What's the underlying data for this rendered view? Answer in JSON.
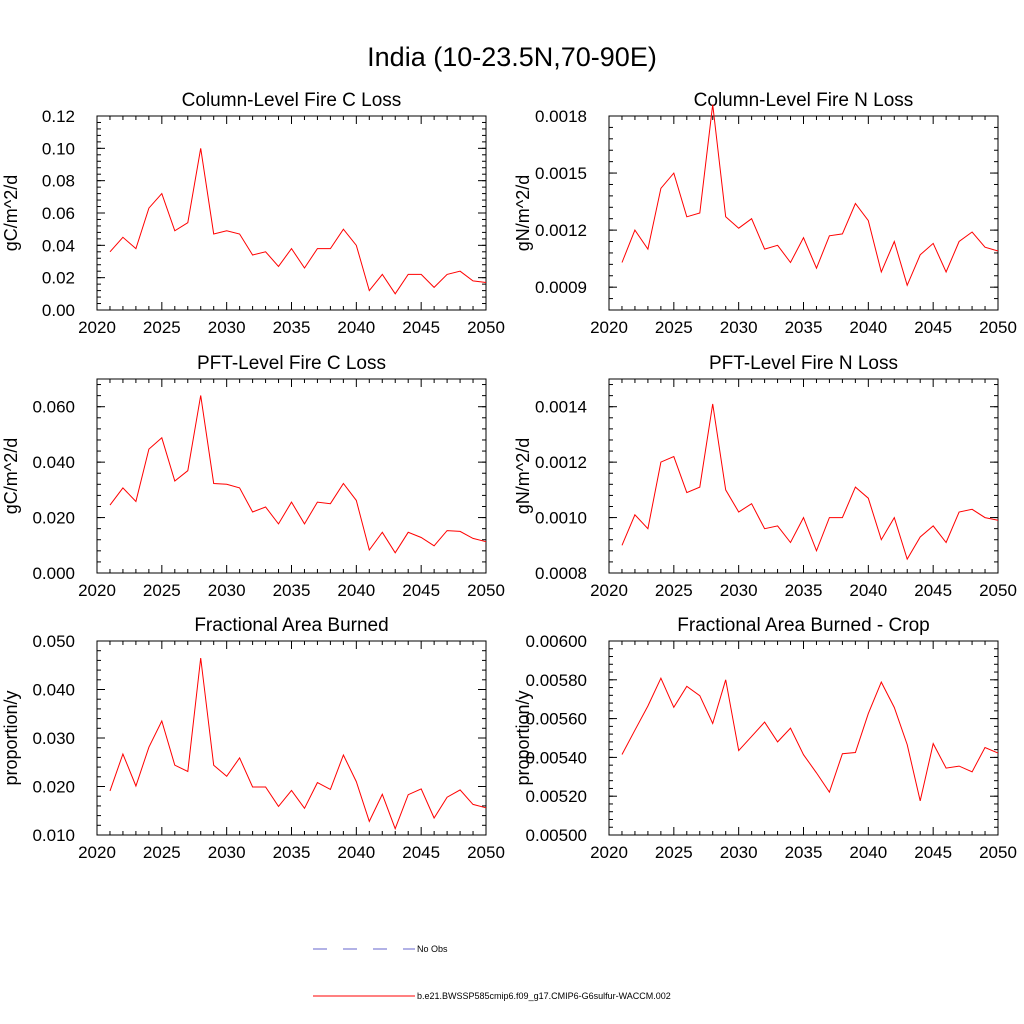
{
  "figure_title": "India (10-23.5N,70-90E)",
  "legend": {
    "items": [
      {
        "label": "No Obs",
        "color": "#6666cc",
        "dash": "dashed"
      },
      {
        "label": "b.e21.BWSSP585cmip6.f09_g17.CMIP6-G6sulfur-WACCM.002",
        "color": "#ff0000",
        "dash": "solid"
      }
    ]
  },
  "chart_data": [
    {
      "type": "line",
      "title": "Column-Level Fire C Loss",
      "ylabel": "gC/m^2/d",
      "xlim": [
        2020,
        2050
      ],
      "ylim": [
        0,
        0.12
      ],
      "xticks": [
        "2020",
        "2025",
        "2030",
        "2035",
        "2040",
        "2045",
        "2050"
      ],
      "yticks": [
        "0.00",
        "0.02",
        "0.04",
        "0.06",
        "0.08",
        "0.10",
        "0.12"
      ],
      "x": [
        2021,
        2022,
        2023,
        2024,
        2025,
        2026,
        2027,
        2028,
        2029,
        2030,
        2031,
        2032,
        2033,
        2034,
        2035,
        2036,
        2037,
        2038,
        2039,
        2040,
        2041,
        2042,
        2043,
        2044,
        2045,
        2046,
        2047,
        2048,
        2049,
        2050
      ],
      "series": [
        {
          "color": "#ff0000",
          "values": [
            0.036,
            0.045,
            0.038,
            0.063,
            0.072,
            0.049,
            0.054,
            0.1,
            0.047,
            0.049,
            0.047,
            0.034,
            0.036,
            0.027,
            0.038,
            0.026,
            0.038,
            0.038,
            0.05,
            0.04,
            0.012,
            0.022,
            0.01,
            0.022,
            0.022,
            0.014,
            0.022,
            0.024,
            0.018,
            0.017
          ]
        }
      ]
    },
    {
      "type": "line",
      "title": "Column-Level Fire N Loss",
      "ylabel": "gN/m^2/d",
      "xlim": [
        2020,
        2050
      ],
      "ylim": [
        0.00078,
        0.0018
      ],
      "xticks": [
        "2020",
        "2025",
        "2030",
        "2035",
        "2040",
        "2045",
        "2050"
      ],
      "yticks": [
        "0.0009",
        "0.0012",
        "0.0015",
        "0.0018"
      ],
      "x": [
        2021,
        2022,
        2023,
        2024,
        2025,
        2026,
        2027,
        2028,
        2029,
        2030,
        2031,
        2032,
        2033,
        2034,
        2035,
        2036,
        2037,
        2038,
        2039,
        2040,
        2041,
        2042,
        2043,
        2044,
        2045,
        2046,
        2047,
        2048,
        2049,
        2050
      ],
      "series": [
        {
          "color": "#ff0000",
          "values": [
            0.00103,
            0.0012,
            0.0011,
            0.00142,
            0.0015,
            0.00127,
            0.00129,
            0.00186,
            0.00127,
            0.00121,
            0.00126,
            0.0011,
            0.00112,
            0.00103,
            0.00116,
            0.001,
            0.00117,
            0.00118,
            0.00134,
            0.00125,
            0.00098,
            0.00114,
            0.00091,
            0.00107,
            0.00113,
            0.00098,
            0.00114,
            0.00119,
            0.00111,
            0.00109
          ]
        }
      ]
    },
    {
      "type": "line",
      "title": "PFT-Level Fire C Loss",
      "ylabel": "gC/m^2/d",
      "xlim": [
        2020,
        2050
      ],
      "ylim": [
        0,
        0.07
      ],
      "xticks": [
        "2020",
        "2025",
        "2030",
        "2035",
        "2040",
        "2045",
        "2050"
      ],
      "yticks": [
        "0.000",
        "0.020",
        "0.040",
        "0.060"
      ],
      "x": [
        2021,
        2022,
        2023,
        2024,
        2025,
        2026,
        2027,
        2028,
        2029,
        2030,
        2031,
        2032,
        2033,
        2034,
        2035,
        2036,
        2037,
        2038,
        2039,
        2040,
        2041,
        2042,
        2043,
        2044,
        2045,
        2046,
        2047,
        2048,
        2049,
        2050
      ],
      "series": [
        {
          "color": "#ff0000",
          "values": [
            0.0245,
            0.0307,
            0.0258,
            0.0447,
            0.0488,
            0.0332,
            0.0369,
            0.0641,
            0.0323,
            0.032,
            0.0307,
            0.022,
            0.0238,
            0.0177,
            0.0256,
            0.0177,
            0.0256,
            0.025,
            0.0323,
            0.0262,
            0.0083,
            0.0147,
            0.0073,
            0.0147,
            0.0128,
            0.0098,
            0.0153,
            0.015,
            0.0125,
            0.0113
          ]
        }
      ]
    },
    {
      "type": "line",
      "title": "PFT-Level Fire N Loss",
      "ylabel": "gN/m^2/d",
      "xlim": [
        2020,
        2050
      ],
      "ylim": [
        0.0008,
        0.0015
      ],
      "xticks": [
        "2020",
        "2025",
        "2030",
        "2035",
        "2040",
        "2045",
        "2050"
      ],
      "yticks": [
        "0.0008",
        "0.0010",
        "0.0012",
        "0.0014"
      ],
      "x": [
        2021,
        2022,
        2023,
        2024,
        2025,
        2026,
        2027,
        2028,
        2029,
        2030,
        2031,
        2032,
        2033,
        2034,
        2035,
        2036,
        2037,
        2038,
        2039,
        2040,
        2041,
        2042,
        2043,
        2044,
        2045,
        2046,
        2047,
        2048,
        2049,
        2050
      ],
      "series": [
        {
          "color": "#ff0000",
          "values": [
            0.0009,
            0.00101,
            0.00096,
            0.0012,
            0.00122,
            0.00109,
            0.00111,
            0.00141,
            0.0011,
            0.00102,
            0.00105,
            0.00096,
            0.00097,
            0.00091,
            0.001,
            0.00088,
            0.001,
            0.001,
            0.00111,
            0.00107,
            0.00092,
            0.001,
            0.00085,
            0.00093,
            0.00097,
            0.00091,
            0.00102,
            0.00103,
            0.001,
            0.00099
          ]
        }
      ]
    },
    {
      "type": "line",
      "title": "Fractional Area Burned",
      "ylabel": "proportion/y",
      "xlim": [
        2020,
        2050
      ],
      "ylim": [
        0.01,
        0.05
      ],
      "xticks": [
        "2020",
        "2025",
        "2030",
        "2035",
        "2040",
        "2045",
        "2050"
      ],
      "yticks": [
        "0.010",
        "0.020",
        "0.030",
        "0.040",
        "0.050"
      ],
      "x": [
        2021,
        2022,
        2023,
        2024,
        2025,
        2026,
        2027,
        2028,
        2029,
        2030,
        2031,
        2032,
        2033,
        2034,
        2035,
        2036,
        2037,
        2038,
        2039,
        2040,
        2041,
        2042,
        2043,
        2044,
        2045,
        2046,
        2047,
        2048,
        2049,
        2050
      ],
      "series": [
        {
          "color": "#ff0000",
          "values": [
            0.0191,
            0.0267,
            0.0201,
            0.0281,
            0.0335,
            0.0244,
            0.0231,
            0.0465,
            0.0244,
            0.0221,
            0.0259,
            0.0199,
            0.0199,
            0.0159,
            0.0192,
            0.0155,
            0.0208,
            0.0194,
            0.0265,
            0.021,
            0.0128,
            0.0184,
            0.0113,
            0.0183,
            0.0195,
            0.0135,
            0.0178,
            0.0193,
            0.0163,
            0.0156
          ]
        }
      ]
    },
    {
      "type": "line",
      "title": "Fractional Area Burned - Crop",
      "ylabel": "proportion/y",
      "xlim": [
        2020,
        2050
      ],
      "ylim": [
        0.005,
        0.006
      ],
      "xticks": [
        "2020",
        "2025",
        "2030",
        "2035",
        "2040",
        "2045",
        "2050"
      ],
      "yticks": [
        "0.00500",
        "0.00520",
        "0.00540",
        "0.00560",
        "0.00580",
        "0.00600"
      ],
      "x": [
        2021,
        2022,
        2023,
        2024,
        2025,
        2026,
        2027,
        2028,
        2029,
        2030,
        2031,
        2032,
        2033,
        2034,
        2035,
        2036,
        2037,
        2038,
        2039,
        2040,
        2041,
        2042,
        2043,
        2044,
        2045,
        2046,
        2047,
        2048,
        2049,
        2050
      ],
      "series": [
        {
          "color": "#ff0000",
          "values": [
            0.005415,
            0.00554,
            0.005665,
            0.005808,
            0.005658,
            0.005766,
            0.005718,
            0.005575,
            0.0058,
            0.005435,
            0.005508,
            0.005582,
            0.00548,
            0.005551,
            0.005414,
            0.00532,
            0.005221,
            0.005419,
            0.005425,
            0.005626,
            0.005788,
            0.005657,
            0.005466,
            0.005176,
            0.005471,
            0.005345,
            0.005355,
            0.005326,
            0.005451,
            0.005422
          ]
        }
      ]
    }
  ]
}
